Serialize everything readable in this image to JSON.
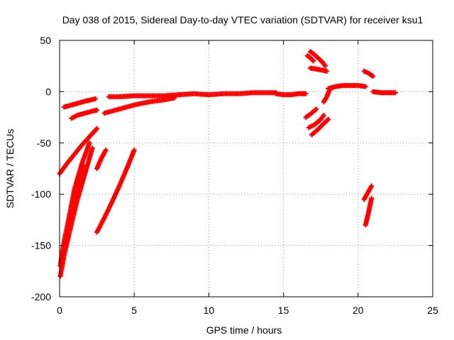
{
  "chart_data": {
    "type": "scatter",
    "title": "Day 038 of 2015, Sidereal Day-to-day VTEC variation (SDTVAR) for receiver ksu1",
    "xlabel": "GPS time / hours",
    "ylabel": "SDTVAR / TECUs",
    "xlim": [
      0,
      25
    ],
    "ylim": [
      -200,
      50
    ],
    "x_ticks": [
      0,
      5,
      10,
      15,
      20,
      25
    ],
    "x_tick_labels": [
      "0",
      "5",
      "10",
      "15",
      "20",
      "25"
    ],
    "y_ticks": [
      -200,
      -150,
      -100,
      -50,
      0,
      50
    ],
    "y_tick_labels": [
      "-200",
      "-150",
      "-100",
      "-50",
      "0",
      "50"
    ],
    "grid": true,
    "marker": "+",
    "series_color": "#ff0000",
    "tracks": [
      {
        "x": [
          0.3,
          0.8,
          1.3,
          1.8,
          2.4
        ],
        "y": [
          -15,
          -13,
          -11,
          -9,
          -7
        ]
      },
      {
        "x": [
          0.8,
          1.2,
          1.7,
          2.2,
          2.5
        ],
        "y": [
          -26,
          -23,
          -21,
          -19,
          -18
        ]
      },
      {
        "x": [
          0.0,
          0.5,
          1.0,
          1.5,
          2.0,
          2.5
        ],
        "y": [
          -80,
          -70,
          -61,
          -52,
          -44,
          -36
        ]
      },
      {
        "x": [
          0.05,
          0.3,
          0.7,
          1.2,
          1.7,
          2.2
        ],
        "y": [
          -180,
          -160,
          -135,
          -105,
          -80,
          -55
        ]
      },
      {
        "x": [
          0.05,
          0.25,
          0.6,
          1.0,
          1.5,
          2.0
        ],
        "y": [
          -170,
          -150,
          -125,
          -95,
          -70,
          -50
        ]
      },
      {
        "x": [
          0.1,
          0.4,
          0.8,
          1.2,
          1.6
        ],
        "y": [
          -165,
          -145,
          -120,
          -95,
          -72
        ]
      },
      {
        "x": [
          2.5,
          2.8,
          3.1
        ],
        "y": [
          -75,
          -65,
          -57
        ]
      },
      {
        "x": [
          2.5,
          3.0,
          3.5,
          4.0,
          4.5,
          5.0
        ],
        "y": [
          -137,
          -123,
          -108,
          -92,
          -75,
          -57
        ]
      },
      {
        "x": [
          3.0,
          4.0,
          5.0,
          6.0,
          7.0,
          7.7
        ],
        "y": [
          -21,
          -17,
          -13,
          -10,
          -8,
          -6
        ]
      },
      {
        "x": [
          3.3,
          4.0,
          5.0,
          6.0,
          7.0,
          8.0
        ],
        "y": [
          -5,
          -5,
          -4,
          -4,
          -4,
          -3
        ]
      },
      {
        "x": [
          8.0,
          9.0,
          10.0,
          11.0,
          12.0,
          13.0,
          14.0,
          14.5
        ],
        "y": [
          -3,
          -2,
          -3,
          -2,
          -2,
          -1,
          -1,
          -1
        ]
      },
      {
        "x": [
          14.5,
          15.0,
          15.5,
          16.0,
          16.5
        ],
        "y": [
          -2,
          -3,
          -3,
          -2,
          -2
        ]
      },
      {
        "x": [
          16.8,
          17.0,
          17.3,
          17.6,
          17.8
        ],
        "y": [
          39,
          37,
          33,
          29,
          25
        ]
      },
      {
        "x": [
          16.6,
          16.8,
          17.0
        ],
        "y": [
          35,
          33,
          30
        ]
      },
      {
        "x": [
          16.8,
          17.2,
          17.6,
          17.9
        ],
        "y": [
          23,
          22,
          21,
          20
        ]
      },
      {
        "x": [
          16.5,
          16.8,
          17.2
        ],
        "y": [
          -25,
          -22,
          -17
        ]
      },
      {
        "x": [
          16.7,
          17.1,
          17.5,
          17.7
        ],
        "y": [
          -35,
          -32,
          -27,
          -23
        ]
      },
      {
        "x": [
          16.9,
          17.3,
          17.7,
          18.0
        ],
        "y": [
          -42,
          -37,
          -31,
          -27
        ]
      },
      {
        "x": [
          17.7,
          17.9,
          18.1
        ],
        "y": [
          -10,
          -5,
          2
        ]
      },
      {
        "x": [
          18.0,
          18.5,
          19.0,
          19.5,
          20.0,
          20.5
        ],
        "y": [
          3,
          5,
          6,
          6,
          6,
          5
        ]
      },
      {
        "x": [
          20.4,
          20.7,
          21.0
        ],
        "y": [
          20,
          18,
          15
        ]
      },
      {
        "x": [
          21.0,
          21.5,
          22.0,
          22.5
        ],
        "y": [
          0,
          -1,
          -1,
          -1
        ]
      },
      {
        "x": [
          20.4,
          20.6,
          20.9
        ],
        "y": [
          -105,
          -100,
          -92
        ]
      },
      {
        "x": [
          20.5,
          20.7,
          20.9
        ],
        "y": [
          -130,
          -118,
          -104
        ]
      }
    ]
  }
}
